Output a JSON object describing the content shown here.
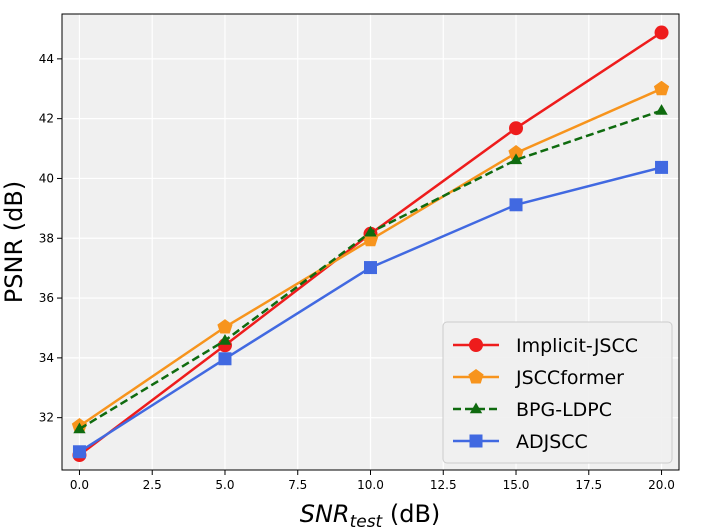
{
  "chart_data": {
    "type": "line",
    "x": [
      0,
      5,
      10,
      15,
      20
    ],
    "xlabel_main": "SNR",
    "xlabel_sub": "test",
    "xlabel_unit": " (dB)",
    "ylabel": "PSNR (dB)",
    "xlim": [
      -0.6,
      20.6
    ],
    "ylim": [
      30.25,
      45.5
    ],
    "xticks": [
      "0.0",
      "2.5",
      "5.0",
      "7.5",
      "10.0",
      "12.5",
      "15.0",
      "17.5",
      "20.0"
    ],
    "yticks": [
      "32",
      "34",
      "36",
      "38",
      "40",
      "42",
      "44"
    ],
    "grid": true,
    "legend_position": "lower-right",
    "series": [
      {
        "name": "Implicit-JSCC",
        "color": "#ee1c1c",
        "marker": "circle",
        "dash": "solid",
        "values": [
          30.75,
          34.42,
          38.15,
          41.68,
          44.88
        ]
      },
      {
        "name": "JSCCformer",
        "color": "#f7941d",
        "marker": "pentagon",
        "dash": "solid",
        "values": [
          31.72,
          35.03,
          37.95,
          40.85,
          43.0
        ]
      },
      {
        "name": "BPG-LDPC",
        "color": "#0f6b0f",
        "marker": "triangle",
        "dash": "dashed",
        "values": [
          31.62,
          34.58,
          38.2,
          40.62,
          42.27
        ]
      },
      {
        "name": "ADJSCC",
        "color": "#4169e1",
        "marker": "square",
        "dash": "solid",
        "values": [
          30.86,
          33.97,
          37.02,
          39.12,
          40.37
        ]
      }
    ]
  }
}
